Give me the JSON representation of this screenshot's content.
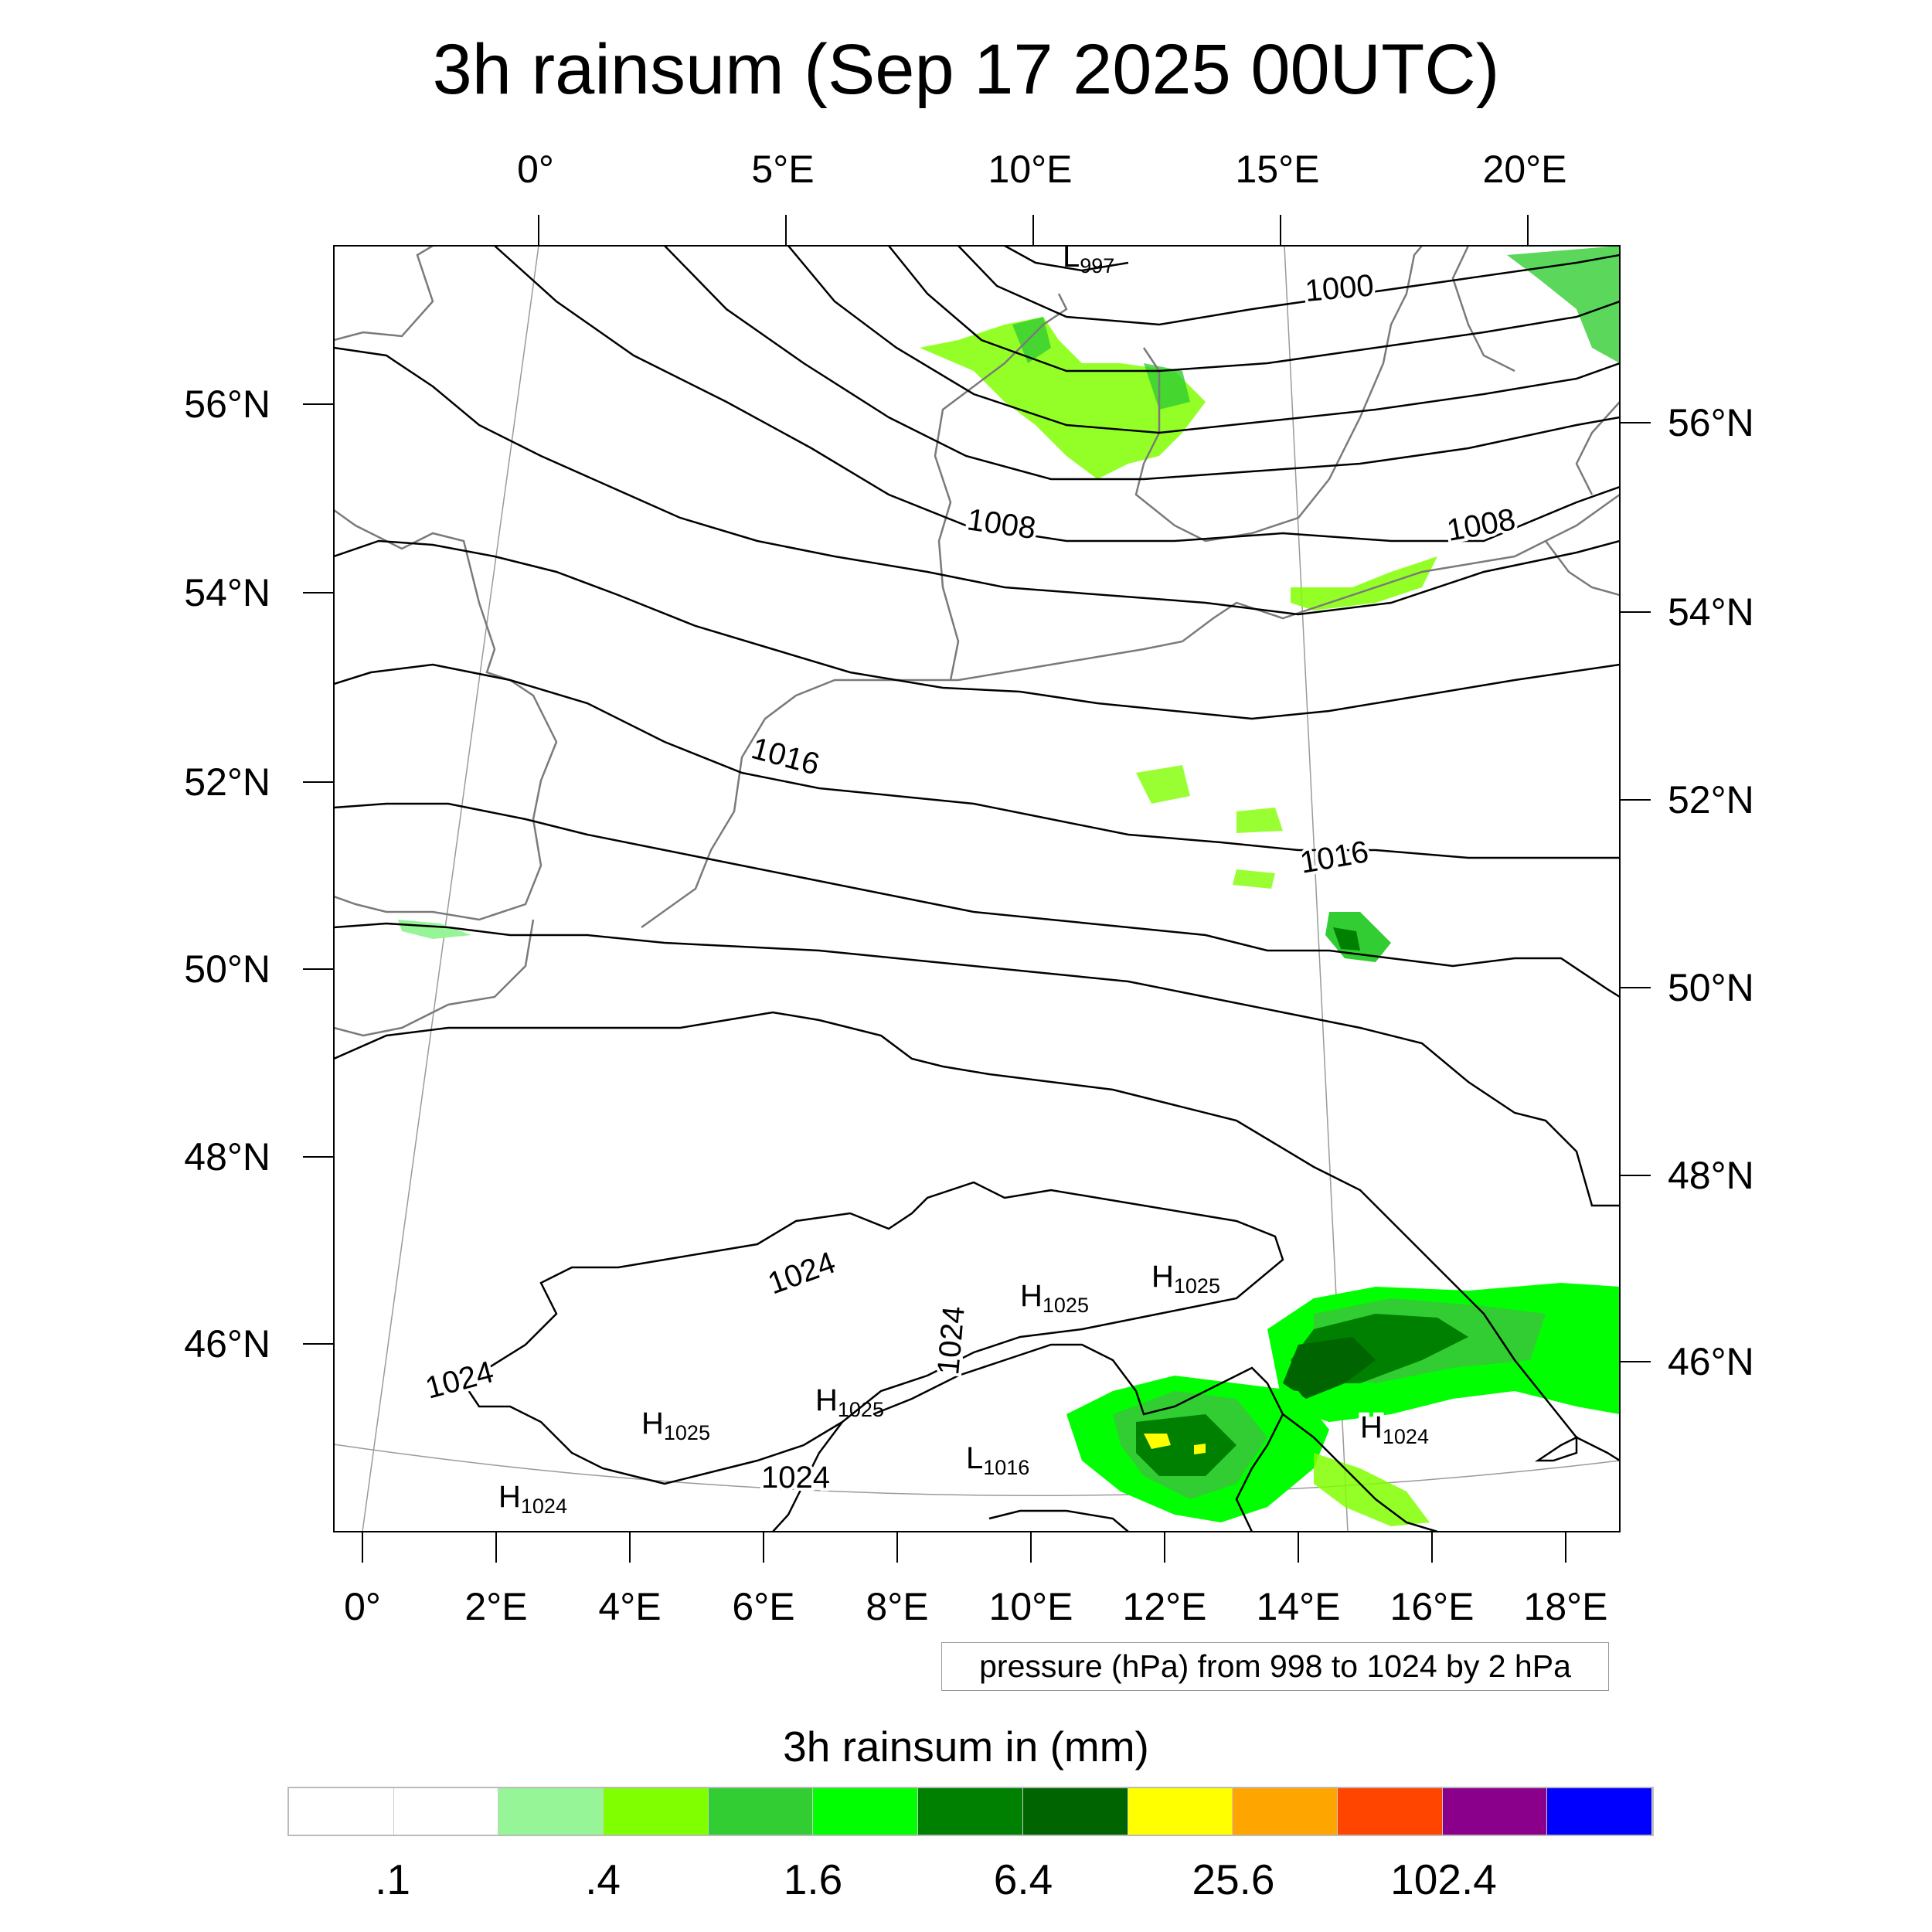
{
  "title": "3h rainsum (Sep 17 2025 00UTC)",
  "top_lon_ticks": [
    "0°",
    "5°E",
    "10°E",
    "15°E",
    "20°E"
  ],
  "bottom_lon_ticks": [
    "0°",
    "2°E",
    "4°E",
    "6°E",
    "8°E",
    "10°E",
    "12°E",
    "14°E",
    "16°E",
    "18°E"
  ],
  "left_lat_ticks": [
    "56°N",
    "54°N",
    "52°N",
    "50°N",
    "48°N",
    "46°N"
  ],
  "right_lat_ticks": [
    "56°N",
    "54°N",
    "52°N",
    "50°N",
    "48°N",
    "46°N"
  ],
  "contour_labels": [
    "1000",
    "1008",
    "1008",
    "1016",
    "1016",
    "1024",
    "1024",
    "1024",
    "1024"
  ],
  "pressure_centers": [
    {
      "letter": "L",
      "value": "997"
    },
    {
      "letter": "H",
      "value": "1025"
    },
    {
      "letter": "H",
      "value": "1025"
    },
    {
      "letter": "H",
      "value": "1025"
    },
    {
      "letter": "H",
      "value": "1025"
    },
    {
      "letter": "L",
      "value": "1016"
    },
    {
      "letter": "H",
      "value": "1024"
    },
    {
      "letter": "H",
      "value": "1024"
    }
  ],
  "legend_text": "pressure (hPa) from 998 to 1024 by 2 hPa",
  "colorbar": {
    "title": "3h rainsum in (mm)",
    "colors": [
      "#ffffff",
      "#ffffff",
      "#96f596",
      "#80ff00",
      "#32cd32",
      "#00ff00",
      "#008000",
      "#006400",
      "#ffff00",
      "#ffa500",
      "#ff4500",
      "#8b008b",
      "#0000ff"
    ],
    "labels": [
      ".1",
      ".4",
      "1.6",
      "6.4",
      "25.6",
      "102.4"
    ]
  }
}
